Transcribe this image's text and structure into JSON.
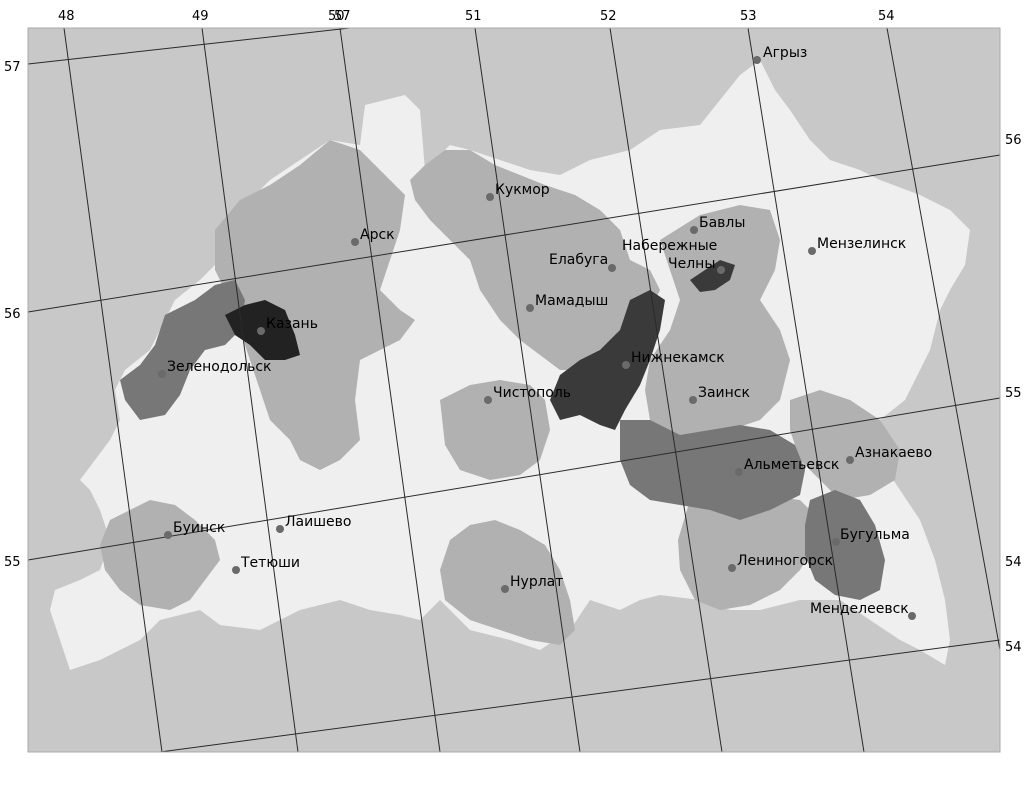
{
  "map": {
    "longitude_labels_top": [
      "48",
      "49",
      "50",
      "51",
      "52",
      "53",
      "54"
    ],
    "longitude_label_overlap": "57",
    "latitude_labels_left": [
      "57",
      "56",
      "55"
    ],
    "latitude_labels_right": [
      "56",
      "55",
      "54",
      "54"
    ],
    "colors": {
      "background": "#c8c8c8",
      "region_lightest": "#efefef",
      "region_light": "#b1b1b1",
      "region_medium": "#777777",
      "region_dark": "#3a3a3a",
      "region_darkest": "#222222",
      "city_marker": "#6a6a6a"
    },
    "cities": [
      {
        "name": "Агрыз"
      },
      {
        "name": "Кукмор"
      },
      {
        "name": "Бавлы"
      },
      {
        "name": "Арск"
      },
      {
        "name": "Набережные"
      },
      {
        "name": "Мензелинск"
      },
      {
        "name": "Елабуга"
      },
      {
        "name": "Челны"
      },
      {
        "name": "Мамадыш"
      },
      {
        "name": "Казань"
      },
      {
        "name": "Нижнекамск"
      },
      {
        "name": "Зеленодольск"
      },
      {
        "name": "Чистополь"
      },
      {
        "name": "Заинск"
      },
      {
        "name": "Азнакаево"
      },
      {
        "name": "Альметьевск"
      },
      {
        "name": "Буинск"
      },
      {
        "name": "Лаишево"
      },
      {
        "name": "Бугульма"
      },
      {
        "name": "Тетюши"
      },
      {
        "name": "Лениногорск"
      },
      {
        "name": "Нурлат"
      },
      {
        "name": "Менделеевск"
      }
    ]
  }
}
